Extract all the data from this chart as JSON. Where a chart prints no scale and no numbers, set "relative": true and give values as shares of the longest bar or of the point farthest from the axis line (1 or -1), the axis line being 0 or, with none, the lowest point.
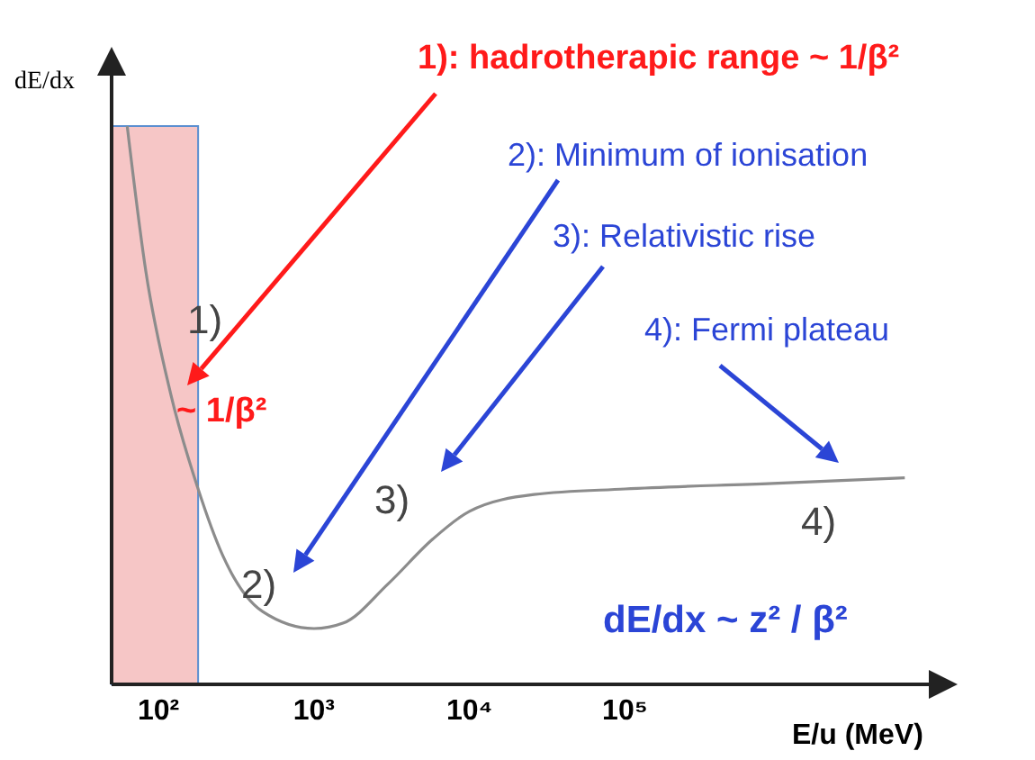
{
  "chart_data": {
    "type": "line",
    "relative": true,
    "log": "x",
    "xlabel": "E/u (MeV)",
    "ylabel": "dE/dx",
    "xlim": [
      50,
      10000000
    ],
    "xticks": [
      {
        "value": 100,
        "label": "10²"
      },
      {
        "value": 1000,
        "label": "10³"
      },
      {
        "value": 10000,
        "label": "10⁴"
      },
      {
        "value": 100000,
        "label": "10⁵"
      }
    ],
    "series": [
      {
        "color": "#8c8c8c",
        "x": [
          63,
          83,
          120,
          180,
          260,
          470,
          1000,
          1550,
          3000,
          5800,
          10000,
          26000,
          100000,
          890000,
          6300000
        ],
        "values": [
          1.0,
          0.74,
          0.52,
          0.35,
          0.23,
          0.13,
          0.1,
          0.11,
          0.18,
          0.26,
          0.31,
          0.34,
          0.35,
          0.36,
          0.37
        ]
      }
    ],
    "bands": [
      {
        "axis": "x",
        "from": 50,
        "to": 180,
        "color": "#f6c6c6"
      }
    ],
    "grid": false,
    "legend": false,
    "marker": "none",
    "annotations": [
      "1): hadrotherapic range ~ 1/β²",
      "2): Minimum of ionisation",
      "3): Relativistic rise",
      "4): Fermi plateau",
      "~ 1/β²",
      "1)",
      "2)",
      "3)",
      "4)",
      "dE/dx  ~  z² / β²"
    ]
  }
}
